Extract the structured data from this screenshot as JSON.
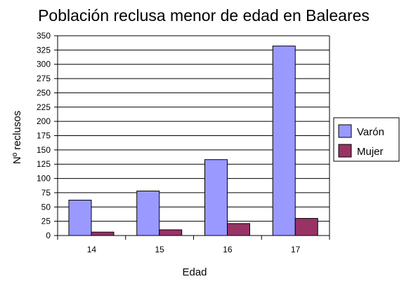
{
  "chart_data": {
    "type": "bar",
    "title": "Población reclusa menor de edad en Baleares",
    "xlabel": "Edad",
    "ylabel": "Nº reclusos",
    "categories": [
      "14",
      "15",
      "16",
      "17"
    ],
    "series": [
      {
        "name": "Varón",
        "values": [
          62,
          78,
          133,
          332
        ],
        "color": "#9999ff"
      },
      {
        "name": "Mujer",
        "values": [
          6,
          10,
          21,
          30
        ],
        "color": "#993366"
      }
    ],
    "ylim": [
      0,
      350
    ],
    "y_ticks": [
      0,
      25,
      50,
      75,
      100,
      125,
      150,
      175,
      200,
      225,
      250,
      275,
      300,
      325,
      350
    ],
    "grid": true,
    "legend_position": "right"
  }
}
